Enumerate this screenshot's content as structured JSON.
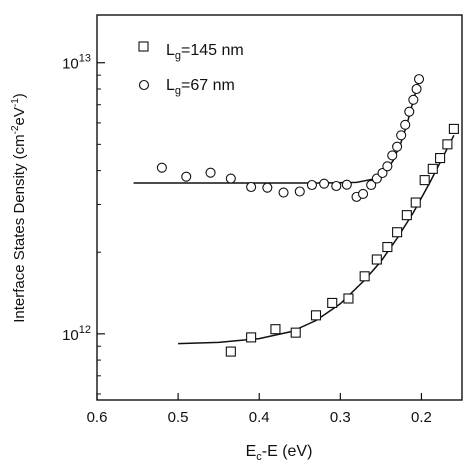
{
  "chart_data": {
    "type": "scatter",
    "xlabel_main": "E",
    "xlabel_sub": "c",
    "xlabel_rest": "-E (eV)",
    "ylabel_main": "Interface States Density (cm",
    "ylabel_sup1": "-2",
    "ylabel_mid": "eV",
    "ylabel_sup2": "-1",
    "ylabel_end": ")",
    "x_reversed": true,
    "xlim": [
      0.6,
      0.15
    ],
    "x_ticks": [
      0.6,
      0.5,
      0.4,
      0.3,
      0.2
    ],
    "x_tick_labels": [
      "0.6",
      "0.5",
      "0.4",
      "0.3",
      "0.2"
    ],
    "y_scale": "log",
    "ylim": [
      570000000000.0,
      15000000000000.0
    ],
    "y_major_ticks": [
      1000000000000.0,
      10000000000000.0
    ],
    "y_tick_labels": [
      {
        "base": "10",
        "exp": "12"
      },
      {
        "base": "10",
        "exp": "13"
      }
    ],
    "y_minor_ticks": [
      600000000000.0,
      700000000000.0,
      800000000000.0,
      900000000000.0,
      2000000000000.0,
      3000000000000.0,
      4000000000000.0,
      5000000000000.0,
      6000000000000.0,
      7000000000000.0,
      8000000000000.0,
      9000000000000.0
    ],
    "legend_position": "top-left",
    "series": [
      {
        "name_main": "L",
        "name_sub": "g",
        "name_rest": "=145 nm",
        "marker": "square",
        "points": [
          [
            0.435,
            860000000000.0
          ],
          [
            0.41,
            970000000000.0
          ],
          [
            0.38,
            1040000000000.0
          ],
          [
            0.355,
            1010000000000.0
          ],
          [
            0.33,
            1170000000000.0
          ],
          [
            0.31,
            1300000000000.0
          ],
          [
            0.29,
            1350000000000.0
          ],
          [
            0.27,
            1630000000000.0
          ],
          [
            0.255,
            1880000000000.0
          ],
          [
            0.242,
            2090000000000.0
          ],
          [
            0.23,
            2370000000000.0
          ],
          [
            0.218,
            2740000000000.0
          ],
          [
            0.207,
            3050000000000.0
          ],
          [
            0.196,
            3690000000000.0
          ],
          [
            0.186,
            4060000000000.0
          ],
          [
            0.177,
            4450000000000.0
          ],
          [
            0.168,
            5000000000000.0
          ],
          [
            0.16,
            5700000000000.0
          ]
        ],
        "fit": [
          [
            0.5,
            920000000000.0
          ],
          [
            0.45,
            930000000000.0
          ],
          [
            0.4,
            960000000000.0
          ],
          [
            0.36,
            1020000000000.0
          ],
          [
            0.33,
            1120000000000.0
          ],
          [
            0.3,
            1290000000000.0
          ],
          [
            0.27,
            1580000000000.0
          ],
          [
            0.25,
            1850000000000.0
          ],
          [
            0.23,
            2250000000000.0
          ],
          [
            0.21,
            2800000000000.0
          ],
          [
            0.19,
            3600000000000.0
          ],
          [
            0.175,
            4400000000000.0
          ],
          [
            0.16,
            5400000000000.0
          ]
        ]
      },
      {
        "name_main": "L",
        "name_sub": "g",
        "name_rest": "=67 nm",
        "marker": "circle",
        "points": [
          [
            0.52,
            4100000000000.0
          ],
          [
            0.49,
            3800000000000.0
          ],
          [
            0.46,
            3930000000000.0
          ],
          [
            0.435,
            3740000000000.0
          ],
          [
            0.41,
            3480000000000.0
          ],
          [
            0.39,
            3460000000000.0
          ],
          [
            0.37,
            3320000000000.0
          ],
          [
            0.35,
            3350000000000.0
          ],
          [
            0.335,
            3540000000000.0
          ],
          [
            0.32,
            3580000000000.0
          ],
          [
            0.305,
            3510000000000.0
          ],
          [
            0.292,
            3550000000000.0
          ],
          [
            0.28,
            3200000000000.0
          ],
          [
            0.272,
            3280000000000.0
          ],
          [
            0.262,
            3540000000000.0
          ],
          [
            0.255,
            3740000000000.0
          ],
          [
            0.248,
            3920000000000.0
          ],
          [
            0.242,
            4150000000000.0
          ],
          [
            0.236,
            4550000000000.0
          ],
          [
            0.23,
            4900000000000.0
          ],
          [
            0.225,
            5400000000000.0
          ],
          [
            0.22,
            5900000000000.0
          ],
          [
            0.215,
            6600000000000.0
          ],
          [
            0.21,
            7300000000000.0
          ],
          [
            0.206,
            8000000000000.0
          ],
          [
            0.203,
            8700000000000.0
          ]
        ],
        "fit": [
          [
            0.555,
            3600000000000.0
          ],
          [
            0.5,
            3600000000000.0
          ],
          [
            0.4,
            3600000000000.0
          ],
          [
            0.32,
            3600000000000.0
          ],
          [
            0.28,
            3620000000000.0
          ],
          [
            0.26,
            3720000000000.0
          ],
          [
            0.245,
            3950000000000.0
          ],
          [
            0.235,
            4350000000000.0
          ],
          [
            0.225,
            5100000000000.0
          ],
          [
            0.218,
            5900000000000.0
          ],
          [
            0.212,
            6900000000000.0
          ],
          [
            0.206,
            8000000000000.0
          ],
          [
            0.202,
            8800000000000.0
          ]
        ]
      }
    ]
  }
}
